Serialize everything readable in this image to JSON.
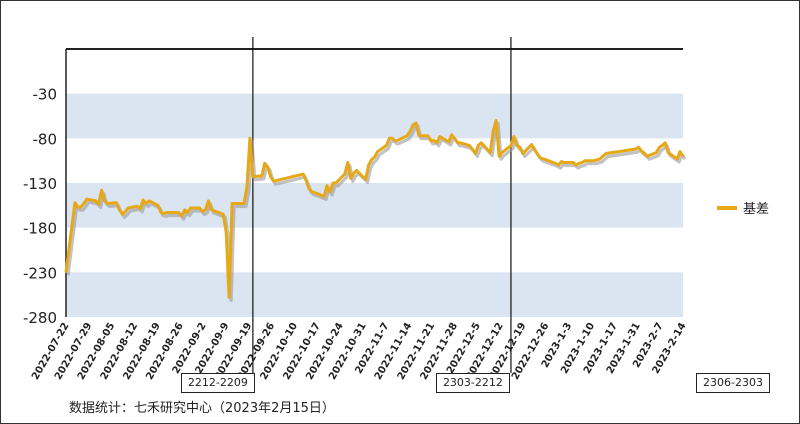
{
  "chart_data": {
    "type": "line",
    "title": "",
    "xlabel": "",
    "ylabel": "",
    "ylim": [
      -280,
      20
    ],
    "yticks": [
      -30,
      -80,
      -130,
      -180,
      -230,
      -280
    ],
    "band_color": "#dbe5f1",
    "line_color": "#e6a817",
    "grid": false,
    "legend_position": "right",
    "series": [
      {
        "name": "基差",
        "x": [
          "2022-07-22",
          "2022-07-25",
          "2022-07-26",
          "2022-07-27",
          "2022-07-28",
          "2022-07-29",
          "2022-08-01",
          "2022-08-02",
          "2022-08-03",
          "2022-08-04",
          "2022-08-05",
          "2022-08-08",
          "2022-08-09",
          "2022-08-10",
          "2022-08-11",
          "2022-08-12",
          "2022-08-15",
          "2022-08-16",
          "2022-08-17",
          "2022-08-18",
          "2022-08-19",
          "2022-08-22",
          "2022-08-23",
          "2022-08-24",
          "2022-08-25",
          "2022-08-26",
          "2022-08-29",
          "2022-08-30",
          "2022-08-31",
          "2022-09-01",
          "2022-09-02",
          "2022-09-05",
          "2022-09-06",
          "2022-09-07",
          "2022-09-08",
          "2022-09-09",
          "2022-09-13",
          "2022-09-14",
          "2022-09-15",
          "2022-09-16",
          "2022-09-19",
          "2022-09-20",
          "2022-09-21",
          "2022-09-22",
          "2022-09-23",
          "2022-09-26",
          "2022-09-27",
          "2022-09-28",
          "2022-09-29",
          "2022-09-30",
          "2022-10-10",
          "2022-10-11",
          "2022-10-12",
          "2022-10-13",
          "2022-10-14",
          "2022-10-17",
          "2022-10-18",
          "2022-10-19",
          "2022-10-20",
          "2022-10-21",
          "2022-10-24",
          "2022-10-25",
          "2022-10-26",
          "2022-10-27",
          "2022-10-28",
          "2022-10-31",
          "2022-11-01",
          "2022-11-02",
          "2022-11-03",
          "2022-11-04",
          "2022-11-07",
          "2022-11-08",
          "2022-11-09",
          "2022-11-10",
          "2022-11-11",
          "2022-11-14",
          "2022-11-15",
          "2022-11-16",
          "2022-11-17",
          "2022-11-18",
          "2022-11-21",
          "2022-11-22",
          "2022-11-23",
          "2022-11-24",
          "2022-11-25",
          "2022-11-28",
          "2022-11-29",
          "2022-11-30",
          "2022-12-01",
          "2022-12-02",
          "2022-12-05",
          "2022-12-06",
          "2022-12-07",
          "2022-12-08",
          "2022-12-09",
          "2022-12-12",
          "2022-12-13",
          "2022-12-14",
          "2022-12-15",
          "2022-12-16",
          "2022-12-19",
          "2022-12-20",
          "2022-12-21",
          "2022-12-22",
          "2022-12-23",
          "2022-12-26",
          "2022-12-27",
          "2022-12-28",
          "2022-12-29",
          "2022-12-30",
          "2023-01-03",
          "2023-01-04",
          "2023-01-05",
          "2023-01-06",
          "2023-01-09",
          "2023-01-10",
          "2023-01-11",
          "2023-01-12",
          "2023-01-13",
          "2023-01-16",
          "2023-01-17",
          "2023-01-18",
          "2023-01-19",
          "2023-01-20",
          "2023-01-30",
          "2023-01-31",
          "2023-02-01",
          "2023-02-02",
          "2023-02-03",
          "2023-02-06",
          "2023-02-07",
          "2023-02-08",
          "2023-02-09",
          "2023-02-10",
          "2023-02-13",
          "2023-02-14",
          "2023-02-15"
        ],
        "y": [
          -230,
          -152,
          -157,
          -157,
          -153,
          -148,
          -150,
          -154,
          -138,
          -150,
          -153,
          -152,
          -160,
          -165,
          -162,
          -158,
          -156,
          -159,
          -149,
          -153,
          -150,
          -155,
          -163,
          -164,
          -163,
          -163,
          -163,
          -167,
          -160,
          -163,
          -158,
          -158,
          -162,
          -160,
          -150,
          -160,
          -165,
          -185,
          -258,
          -153,
          -153,
          -153,
          -135,
          -80,
          -123,
          -122,
          -108,
          -112,
          -123,
          -128,
          -120,
          -128,
          -137,
          -140,
          -141,
          -145,
          -133,
          -140,
          -130,
          -130,
          -120,
          -107,
          -125,
          -119,
          -116,
          -126,
          -110,
          -104,
          -101,
          -95,
          -88,
          -80,
          -80,
          -83,
          -82,
          -77,
          -72,
          -65,
          -63,
          -77,
          -77,
          -83,
          -82,
          -85,
          -78,
          -84,
          -76,
          -80,
          -85,
          -85,
          -88,
          -92,
          -97,
          -88,
          -85,
          -96,
          -72,
          -60,
          -100,
          -96,
          -88,
          -78,
          -88,
          -90,
          -97,
          -87,
          -93,
          -98,
          -102,
          -103,
          -108,
          -110,
          -106,
          -107,
          -107,
          -110,
          -108,
          -107,
          -105,
          -105,
          -104,
          -103,
          -100,
          -97,
          -92,
          -90,
          -94,
          -97,
          -100,
          -96,
          -90,
          -88,
          -85,
          -96,
          -103,
          -95,
          -100
        ],
        "mark_x": [
          "2022-09-23",
          "2022-12-19",
          "2023-02-16"
        ]
      }
    ],
    "annotations": [
      {
        "x": "2022-09-23",
        "label": "2212-2209"
      },
      {
        "x": "2022-12-19",
        "label": "2303-2212"
      },
      {
        "x": "2023-02-16",
        "label": "2306-2303"
      }
    ],
    "x_tick_labels": [
      "2022-07-22",
      "2022-07-29",
      "2022-08-05",
      "2022-08-12",
      "2022-08-19",
      "2022-08-26",
      "2022-09-2",
      "2022-09-9",
      "2022-09-19",
      "2022-09-26",
      "2022-10-10",
      "2022-10-17",
      "2022-10-24",
      "2022-10-31",
      "2022-11-7",
      "2022-11-14",
      "2022-11-21",
      "2022-11-28",
      "2022-12-5",
      "2022-12-12",
      "2022-12-19",
      "2022-12-26",
      "2023-1-3",
      "2023-1-10",
      "2023-1-17",
      "2023-1-31",
      "2023-2-7",
      "2023-2-14"
    ]
  },
  "source_note": "数据统计：七禾研究中心（2023年2月15日）"
}
